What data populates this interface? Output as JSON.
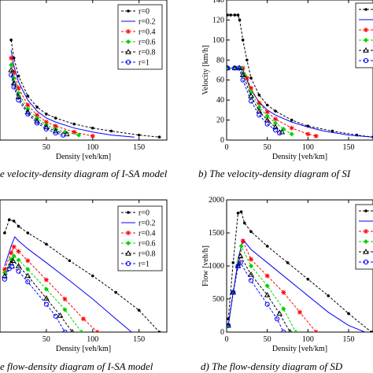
{
  "colors": {
    "r0": "#000000",
    "r02": "#0000ff",
    "r04": "#ff0000",
    "r06": "#00d000",
    "r08": "#000000",
    "r1": "#0000ff"
  },
  "captions": {
    "a": "e velocity-density diagram of I-SA model",
    "b": "b) The velocity-density diagram of SI",
    "c": "e flow-density diagram of I-SA model",
    "d": "d) The flow-density diagram of SD"
  },
  "chart_data": [
    {
      "id": "a",
      "type": "line",
      "xlabel": "Density [veh/km]",
      "ylabel": "",
      "xlim": [
        0,
        180
      ],
      "ylim": [
        0,
        140
      ],
      "xticks": [
        50,
        100,
        150
      ],
      "yticks": [],
      "grid": false,
      "legend": "top-right",
      "series": [
        {
          "name": "r=0",
          "color_key": "r0",
          "marker": "dot",
          "x": [
            12,
            15,
            20,
            30,
            40,
            50,
            60,
            80,
            100,
            120,
            150,
            172
          ],
          "y": [
            100,
            82,
            64,
            44,
            33,
            26,
            22,
            16,
            12,
            9,
            5,
            3
          ]
        },
        {
          "name": "r=0.2",
          "color_key": "r02",
          "marker": "none",
          "x": [
            12,
            15,
            20,
            30,
            40,
            50,
            60,
            80,
            100,
            120,
            145
          ],
          "y": [
            90,
            74,
            58,
            40,
            29,
            22,
            18,
            12,
            8,
            5,
            3
          ]
        },
        {
          "name": "r=0.4",
          "color_key": "r04",
          "marker": "star",
          "x": [
            12,
            15,
            20,
            30,
            40,
            50,
            60,
            80,
            100
          ],
          "y": [
            82,
            68,
            52,
            35,
            25,
            18,
            14,
            8,
            4
          ]
        },
        {
          "name": "r=0.6",
          "color_key": "r06",
          "marker": "diamond",
          "x": [
            12,
            15,
            20,
            30,
            40,
            50,
            60,
            70,
            85
          ],
          "y": [
            75,
            62,
            47,
            31,
            22,
            15,
            11,
            8,
            5
          ]
        },
        {
          "name": "r=0.8",
          "color_key": "r08",
          "marker": "triangle",
          "x": [
            12,
            15,
            20,
            30,
            40,
            50,
            60,
            72
          ],
          "y": [
            70,
            57,
            43,
            28,
            19,
            13,
            9,
            6
          ]
        },
        {
          "name": "r=1",
          "color_key": "r1",
          "marker": "circle",
          "x": [
            12,
            15,
            20,
            30,
            40,
            50,
            60,
            68
          ],
          "y": [
            65,
            53,
            40,
            26,
            17,
            11,
            7,
            5
          ]
        }
      ]
    },
    {
      "id": "b",
      "type": "line",
      "xlabel": "Density [veh/km]",
      "ylabel": "Velocity [km/h]",
      "xlim": [
        0,
        180
      ],
      "ylim": [
        0,
        140
      ],
      "xticks": [
        0,
        50,
        100,
        150
      ],
      "yticks": [
        0,
        20,
        40,
        60,
        80,
        100,
        120,
        140
      ],
      "grid": false,
      "legend": "top-right",
      "series": [
        {
          "color_key": "r0",
          "marker": "dot",
          "x": [
            1,
            5,
            10,
            14,
            16,
            20,
            25,
            30,
            40,
            50,
            60,
            80,
            100,
            130,
            160,
            180
          ],
          "y": [
            125,
            125,
            125,
            125,
            120,
            100,
            80,
            62,
            45,
            35,
            29,
            20,
            14,
            9,
            5,
            3
          ]
        },
        {
          "color_key": "r02",
          "marker": "none",
          "x": [
            1,
            10,
            18,
            20,
            25,
            30,
            40,
            50,
            60,
            80,
            100,
            120,
            150,
            180
          ],
          "y": [
            72,
            72,
            72,
            70,
            60,
            50,
            38,
            30,
            25,
            18,
            13,
            9,
            5,
            3
          ]
        },
        {
          "color_key": "r04",
          "marker": "star",
          "x": [
            1,
            10,
            20,
            25,
            30,
            40,
            50,
            60,
            80,
            100,
            110
          ],
          "y": [
            72,
            72,
            72,
            62,
            52,
            37,
            28,
            21,
            12,
            6,
            4
          ]
        },
        {
          "color_key": "r06",
          "marker": "diamond",
          "x": [
            1,
            10,
            18,
            22,
            30,
            40,
            50,
            60,
            70,
            80
          ],
          "y": [
            72,
            72,
            72,
            65,
            48,
            33,
            24,
            17,
            11,
            6
          ]
        },
        {
          "color_key": "r08",
          "marker": "triangle",
          "x": [
            1,
            10,
            16,
            20,
            30,
            40,
            50,
            60,
            68
          ],
          "y": [
            72,
            72,
            72,
            65,
            44,
            29,
            20,
            13,
            8
          ]
        },
        {
          "color_key": "r1",
          "marker": "circle",
          "x": [
            1,
            10,
            15,
            20,
            30,
            40,
            50,
            60,
            65
          ],
          "y": [
            72,
            72,
            72,
            60,
            39,
            25,
            16,
            10,
            7
          ]
        }
      ]
    },
    {
      "id": "c",
      "type": "line",
      "xlabel": "Density [veh/km]",
      "ylabel": "",
      "xlim": [
        0,
        180
      ],
      "ylim": [
        0,
        2000
      ],
      "xticks": [
        50,
        100,
        150
      ],
      "yticks": [],
      "grid": false,
      "legend": "top-right",
      "series": [
        {
          "name": "r=0",
          "color_key": "r0",
          "marker": "dot",
          "x": [
            5,
            10,
            15,
            20,
            30,
            50,
            75,
            100,
            125,
            150,
            172
          ],
          "y": [
            1500,
            1700,
            1680,
            1600,
            1500,
            1330,
            1080,
            850,
            600,
            330,
            0
          ]
        },
        {
          "name": "r=0.2",
          "color_key": "r02",
          "marker": "none",
          "x": [
            5,
            12,
            16,
            20,
            30,
            50,
            75,
            100,
            125,
            142
          ],
          "y": [
            1000,
            1300,
            1440,
            1380,
            1260,
            1050,
            780,
            500,
            200,
            0
          ]
        },
        {
          "name": "r=0.4",
          "color_key": "r04",
          "marker": "star",
          "x": [
            5,
            12,
            15,
            20,
            30,
            50,
            70,
            90,
            105
          ],
          "y": [
            950,
            1200,
            1290,
            1220,
            1080,
            790,
            500,
            200,
            0
          ]
        },
        {
          "name": "r=0.6",
          "color_key": "r06",
          "marker": "diamond",
          "x": [
            5,
            12,
            15,
            20,
            30,
            50,
            70,
            88
          ],
          "y": [
            900,
            1100,
            1150,
            1090,
            950,
            650,
            340,
            0
          ]
        },
        {
          "name": "r=0.8",
          "color_key": "r08",
          "marker": "triangle",
          "x": [
            5,
            12,
            14,
            20,
            30,
            50,
            65,
            78
          ],
          "y": [
            850,
            1040,
            1080,
            1000,
            850,
            510,
            250,
            0
          ]
        },
        {
          "name": "r=1",
          "color_key": "r1",
          "marker": "circle",
          "x": [
            5,
            10,
            13,
            20,
            30,
            50,
            60,
            70
          ],
          "y": [
            800,
            960,
            990,
            920,
            760,
            420,
            240,
            0
          ]
        }
      ]
    },
    {
      "id": "d",
      "type": "line",
      "xlabel": "Density [veh/km]",
      "ylabel": "Flow [veh/h]",
      "xlim": [
        0,
        180
      ],
      "ylim": [
        0,
        2000
      ],
      "xticks": [
        0,
        50,
        100,
        150
      ],
      "yticks": [
        0,
        500,
        1000,
        1500,
        2000
      ],
      "grid": false,
      "legend": "top-right",
      "series": [
        {
          "color_key": "r0",
          "marker": "dot",
          "x": [
            2,
            8,
            14,
            18,
            22,
            30,
            50,
            75,
            100,
            125,
            150,
            178
          ],
          "y": [
            200,
            1050,
            1800,
            1820,
            1650,
            1520,
            1300,
            1050,
            800,
            550,
            280,
            0
          ]
        },
        {
          "color_key": "r02",
          "marker": "none",
          "x": [
            2,
            8,
            15,
            20,
            30,
            50,
            75,
            100,
            125,
            150,
            170
          ],
          "y": [
            100,
            600,
            1150,
            1400,
            1250,
            1050,
            800,
            550,
            300,
            100,
            0
          ]
        },
        {
          "color_key": "r04",
          "marker": "star",
          "x": [
            2,
            8,
            15,
            20,
            30,
            50,
            70,
            90,
            110
          ],
          "y": [
            100,
            600,
            1050,
            1380,
            1100,
            850,
            600,
            300,
            0
          ]
        },
        {
          "color_key": "r06",
          "marker": "diamond",
          "x": [
            2,
            8,
            15,
            18,
            30,
            50,
            70,
            85
          ],
          "y": [
            100,
            600,
            1050,
            1300,
            1000,
            700,
            350,
            0
          ]
        },
        {
          "color_key": "r08",
          "marker": "triangle",
          "x": [
            2,
            8,
            14,
            17,
            30,
            50,
            65,
            78
          ],
          "y": [
            100,
            600,
            1000,
            1150,
            870,
            560,
            280,
            0
          ]
        },
        {
          "color_key": "r1",
          "marker": "circle",
          "x": [
            2,
            8,
            14,
            17,
            30,
            50,
            62,
            70
          ],
          "y": [
            100,
            600,
            1000,
            1050,
            780,
            420,
            200,
            0
          ]
        }
      ]
    }
  ]
}
